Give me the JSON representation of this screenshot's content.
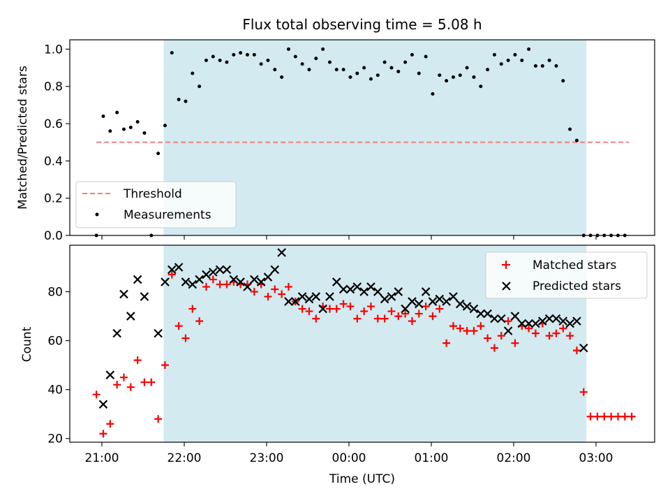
{
  "chart_data": {
    "title": "Flux total observing time = 5.08 h",
    "type": "scatter",
    "xlabel": "Time (UTC)",
    "x_ticks": [
      "21:00",
      "22:00",
      "23:00",
      "00:00",
      "01:00",
      "02:00",
      "03:00"
    ],
    "observing_window": {
      "start": "21:45",
      "end": "02:53",
      "color": "#d3eaf0"
    },
    "panels": [
      {
        "ylabel": "Matched/Predicted stars",
        "ylim": [
          0,
          1.05
        ],
        "y_ticks": [
          "0.0",
          "0.2",
          "0.4",
          "0.6",
          "0.8",
          "1.0"
        ],
        "legend_position": "lower-left",
        "threshold": {
          "name": "Threshold",
          "value": 0.5,
          "x_start": "20:56",
          "x_end": "03:24",
          "color": "#f08080"
        },
        "series": [
          {
            "name": "Measurements",
            "marker": "dot",
            "color": "#000000",
            "points": [
              [
                "20:56",
                0.0
              ],
              [
                "21:01",
                0.64
              ],
              [
                "21:06",
                0.56
              ],
              [
                "21:11",
                0.66
              ],
              [
                "21:16",
                0.57
              ],
              [
                "21:21",
                0.58
              ],
              [
                "21:26",
                0.61
              ],
              [
                "21:31",
                0.55
              ],
              [
                "21:36",
                0.0
              ],
              [
                "21:41",
                0.44
              ],
              [
                "21:46",
                0.59
              ],
              [
                "21:51",
                0.98
              ],
              [
                "21:56",
                0.73
              ],
              [
                "22:01",
                0.72
              ],
              [
                "22:06",
                0.87
              ],
              [
                "22:11",
                0.8
              ],
              [
                "22:16",
                0.94
              ],
              [
                "22:21",
                0.96
              ],
              [
                "22:26",
                0.94
              ],
              [
                "22:31",
                0.93
              ],
              [
                "22:36",
                0.97
              ],
              [
                "22:41",
                0.98
              ],
              [
                "22:46",
                0.97
              ],
              [
                "22:51",
                0.97
              ],
              [
                "22:56",
                0.92
              ],
              [
                "23:01",
                0.94
              ],
              [
                "23:06",
                0.89
              ],
              [
                "23:11",
                0.85
              ],
              [
                "23:16",
                1.0
              ],
              [
                "23:21",
                0.96
              ],
              [
                "23:26",
                0.92
              ],
              [
                "23:31",
                0.89
              ],
              [
                "23:36",
                0.95
              ],
              [
                "23:41",
                1.0
              ],
              [
                "23:46",
                0.93
              ],
              [
                "23:51",
                0.89
              ],
              [
                "23:56",
                0.89
              ],
              [
                "00:01",
                0.85
              ],
              [
                "00:06",
                0.87
              ],
              [
                "00:11",
                0.9
              ],
              [
                "00:16",
                0.84
              ],
              [
                "00:21",
                0.86
              ],
              [
                "00:26",
                0.93
              ],
              [
                "00:31",
                0.9
              ],
              [
                "00:36",
                0.88
              ],
              [
                "00:41",
                0.93
              ],
              [
                "00:46",
                0.97
              ],
              [
                "00:51",
                0.87
              ],
              [
                "00:56",
                0.96
              ],
              [
                "01:01",
                0.76
              ],
              [
                "01:06",
                0.86
              ],
              [
                "01:11",
                0.83
              ],
              [
                "01:16",
                0.85
              ],
              [
                "01:21",
                0.86
              ],
              [
                "01:26",
                0.9
              ],
              [
                "01:31",
                0.85
              ],
              [
                "01:36",
                0.8
              ],
              [
                "01:41",
                0.89
              ],
              [
                "01:46",
                0.97
              ],
              [
                "01:51",
                0.92
              ],
              [
                "01:56",
                0.94
              ],
              [
                "02:01",
                0.97
              ],
              [
                "02:06",
                0.94
              ],
              [
                "02:11",
                1.0
              ],
              [
                "02:16",
                0.91
              ],
              [
                "02:21",
                0.91
              ],
              [
                "02:26",
                0.94
              ],
              [
                "02:31",
                0.91
              ],
              [
                "02:36",
                0.83
              ],
              [
                "02:41",
                0.57
              ],
              [
                "02:46",
                0.51
              ],
              [
                "02:51",
                0.0
              ],
              [
                "02:56",
                0.0
              ],
              [
                "03:01",
                0.0
              ],
              [
                "03:06",
                0.0
              ],
              [
                "03:11",
                0.0
              ],
              [
                "03:16",
                0.0
              ],
              [
                "03:21",
                0.0
              ]
            ]
          }
        ]
      },
      {
        "ylabel": "Count",
        "ylim": [
          18.5,
          99
        ],
        "y_ticks": [
          "20",
          "40",
          "60",
          "80"
        ],
        "legend_position": "upper-right",
        "series": [
          {
            "name": "Matched stars",
            "marker": "plus",
            "color": "#ff0000",
            "points": [
              [
                "20:56",
                38
              ],
              [
                "21:01",
                22
              ],
              [
                "21:06",
                26
              ],
              [
                "21:11",
                42
              ],
              [
                "21:16",
                45
              ],
              [
                "21:21",
                41
              ],
              [
                "21:26",
                52
              ],
              [
                "21:31",
                43
              ],
              [
                "21:36",
                43
              ],
              [
                "21:41",
                28
              ],
              [
                "21:46",
                50
              ],
              [
                "21:51",
                87
              ],
              [
                "21:56",
                66
              ],
              [
                "22:01",
                61
              ],
              [
                "22:06",
                73
              ],
              [
                "22:11",
                68
              ],
              [
                "22:16",
                82
              ],
              [
                "22:21",
                85
              ],
              [
                "22:26",
                83
              ],
              [
                "22:31",
                83
              ],
              [
                "22:36",
                84
              ],
              [
                "22:41",
                83
              ],
              [
                "22:46",
                83
              ],
              [
                "22:51",
                80
              ],
              [
                "22:56",
                83
              ],
              [
                "23:01",
                78
              ],
              [
                "23:06",
                81
              ],
              [
                "23:11",
                79
              ],
              [
                "23:16",
                82
              ],
              [
                "23:21",
                76
              ],
              [
                "23:26",
                73
              ],
              [
                "23:31",
                72
              ],
              [
                "23:36",
                69
              ],
              [
                "23:41",
                74
              ],
              [
                "23:46",
                73
              ],
              [
                "23:51",
                73
              ],
              [
                "23:56",
                75
              ],
              [
                "00:01",
                74
              ],
              [
                "00:06",
                69
              ],
              [
                "00:11",
                72
              ],
              [
                "00:16",
                74
              ],
              [
                "00:21",
                69
              ],
              [
                "00:26",
                69
              ],
              [
                "00:31",
                72
              ],
              [
                "00:36",
                70
              ],
              [
                "00:41",
                71
              ],
              [
                "00:46",
                68
              ],
              [
                "00:51",
                71
              ],
              [
                "00:56",
                74
              ],
              [
                "01:01",
                70
              ],
              [
                "01:06",
                73
              ],
              [
                "01:11",
                59
              ],
              [
                "01:16",
                66
              ],
              [
                "01:21",
                65
              ],
              [
                "01:26",
                64
              ],
              [
                "01:31",
                64
              ],
              [
                "01:36",
                66
              ],
              [
                "01:41",
                61
              ],
              [
                "01:46",
                57
              ],
              [
                "01:51",
                62
              ],
              [
                "01:56",
                68
              ],
              [
                "02:01",
                59
              ],
              [
                "02:06",
                66
              ],
              [
                "02:11",
                65
              ],
              [
                "02:16",
                63
              ],
              [
                "02:21",
                67
              ],
              [
                "02:26",
                62
              ],
              [
                "02:31",
                63
              ],
              [
                "02:36",
                65
              ],
              [
                "02:41",
                62
              ],
              [
                "02:46",
                56
              ],
              [
                "02:51",
                39
              ],
              [
                "02:56",
                29
              ],
              [
                "03:01",
                29
              ],
              [
                "03:06",
                29
              ],
              [
                "03:11",
                29
              ],
              [
                "03:16",
                29
              ],
              [
                "03:21",
                29
              ],
              [
                "03:26",
                29
              ]
            ]
          },
          {
            "name": "Predicted stars",
            "marker": "x",
            "color": "#000000",
            "points": [
              [
                "21:01",
                34
              ],
              [
                "21:06",
                46
              ],
              [
                "21:11",
                63
              ],
              [
                "21:16",
                79
              ],
              [
                "21:21",
                70
              ],
              [
                "21:26",
                85
              ],
              [
                "21:31",
                78
              ],
              [
                "21:41",
                63
              ],
              [
                "21:46",
                84
              ],
              [
                "21:51",
                89
              ],
              [
                "21:56",
                90
              ],
              [
                "22:01",
                84
              ],
              [
                "22:06",
                83
              ],
              [
                "22:11",
                85
              ],
              [
                "22:16",
                87
              ],
              [
                "22:21",
                88
              ],
              [
                "22:26",
                89
              ],
              [
                "22:31",
                89
              ],
              [
                "22:36",
                85
              ],
              [
                "22:41",
                84
              ],
              [
                "22:46",
                82
              ],
              [
                "22:51",
                85
              ],
              [
                "22:56",
                84
              ],
              [
                "23:01",
                86
              ],
              [
                "23:06",
                89
              ],
              [
                "23:11",
                96
              ],
              [
                "23:16",
                76
              ],
              [
                "23:21",
                76
              ],
              [
                "23:26",
                78
              ],
              [
                "23:31",
                77
              ],
              [
                "23:36",
                78
              ],
              [
                "23:41",
                73
              ],
              [
                "23:46",
                78
              ],
              [
                "23:51",
                84
              ],
              [
                "23:56",
                81
              ],
              [
                "00:01",
                81
              ],
              [
                "00:06",
                82
              ],
              [
                "00:11",
                80
              ],
              [
                "00:16",
                82
              ],
              [
                "00:21",
                80
              ],
              [
                "00:26",
                77
              ],
              [
                "00:31",
                78
              ],
              [
                "00:36",
                80
              ],
              [
                "00:41",
                73
              ],
              [
                "00:46",
                76
              ],
              [
                "00:51",
                75
              ],
              [
                "00:56",
                80
              ],
              [
                "01:01",
                76
              ],
              [
                "01:06",
                77
              ],
              [
                "01:11",
                76
              ],
              [
                "01:16",
                78
              ],
              [
                "01:21",
                75
              ],
              [
                "01:26",
                74
              ],
              [
                "01:31",
                73
              ],
              [
                "01:36",
                71
              ],
              [
                "01:41",
                71
              ],
              [
                "01:46",
                69
              ],
              [
                "01:51",
                69
              ],
              [
                "01:56",
                64
              ],
              [
                "02:01",
                70
              ],
              [
                "02:06",
                67
              ],
              [
                "02:11",
                67
              ],
              [
                "02:16",
                67
              ],
              [
                "02:21",
                68
              ],
              [
                "02:26",
                69
              ],
              [
                "02:31",
                69
              ],
              [
                "02:36",
                68
              ],
              [
                "02:41",
                67
              ],
              [
                "02:46",
                68
              ],
              [
                "02:51",
                57
              ]
            ]
          }
        ]
      }
    ]
  }
}
